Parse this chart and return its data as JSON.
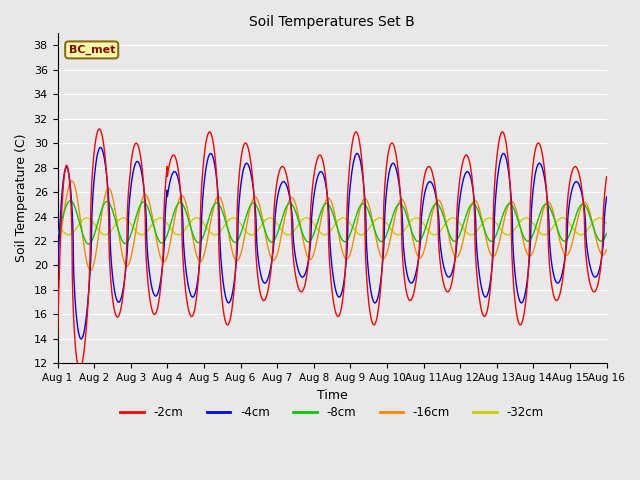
{
  "title": "Soil Temperatures Set B",
  "xlabel": "Time",
  "ylabel": "Soil Temperature (C)",
  "ylim": [
    12,
    39
  ],
  "yticks": [
    12,
    14,
    16,
    18,
    20,
    22,
    24,
    26,
    28,
    30,
    32,
    34,
    36,
    38
  ],
  "x_labels": [
    "Aug 1",
    "Aug 2",
    "Aug 3",
    "Aug 4",
    "Aug 5",
    "Aug 6",
    "Aug 7",
    "Aug 8",
    "Aug 9",
    "Aug 10",
    "Aug 11",
    "Aug 12",
    "Aug 13",
    "Aug 14",
    "Aug 15",
    "Aug 16"
  ],
  "annotation_text": "BC_met",
  "colors": {
    "-2cm": "#ff0000",
    "-4cm": "#0000ff",
    "-8cm": "#00cc00",
    "-16cm": "#ff8800",
    "-32cm": "#cccc00"
  },
  "legend_labels": [
    "-2cm",
    "-4cm",
    "-8cm",
    "-16cm",
    "-32cm"
  ],
  "bg_color": "#e8e8e8",
  "plot_bg_color": "#e8e8e8",
  "grid_color": "#ffffff",
  "figsize": [
    6.4,
    4.8
  ],
  "dpi": 100
}
